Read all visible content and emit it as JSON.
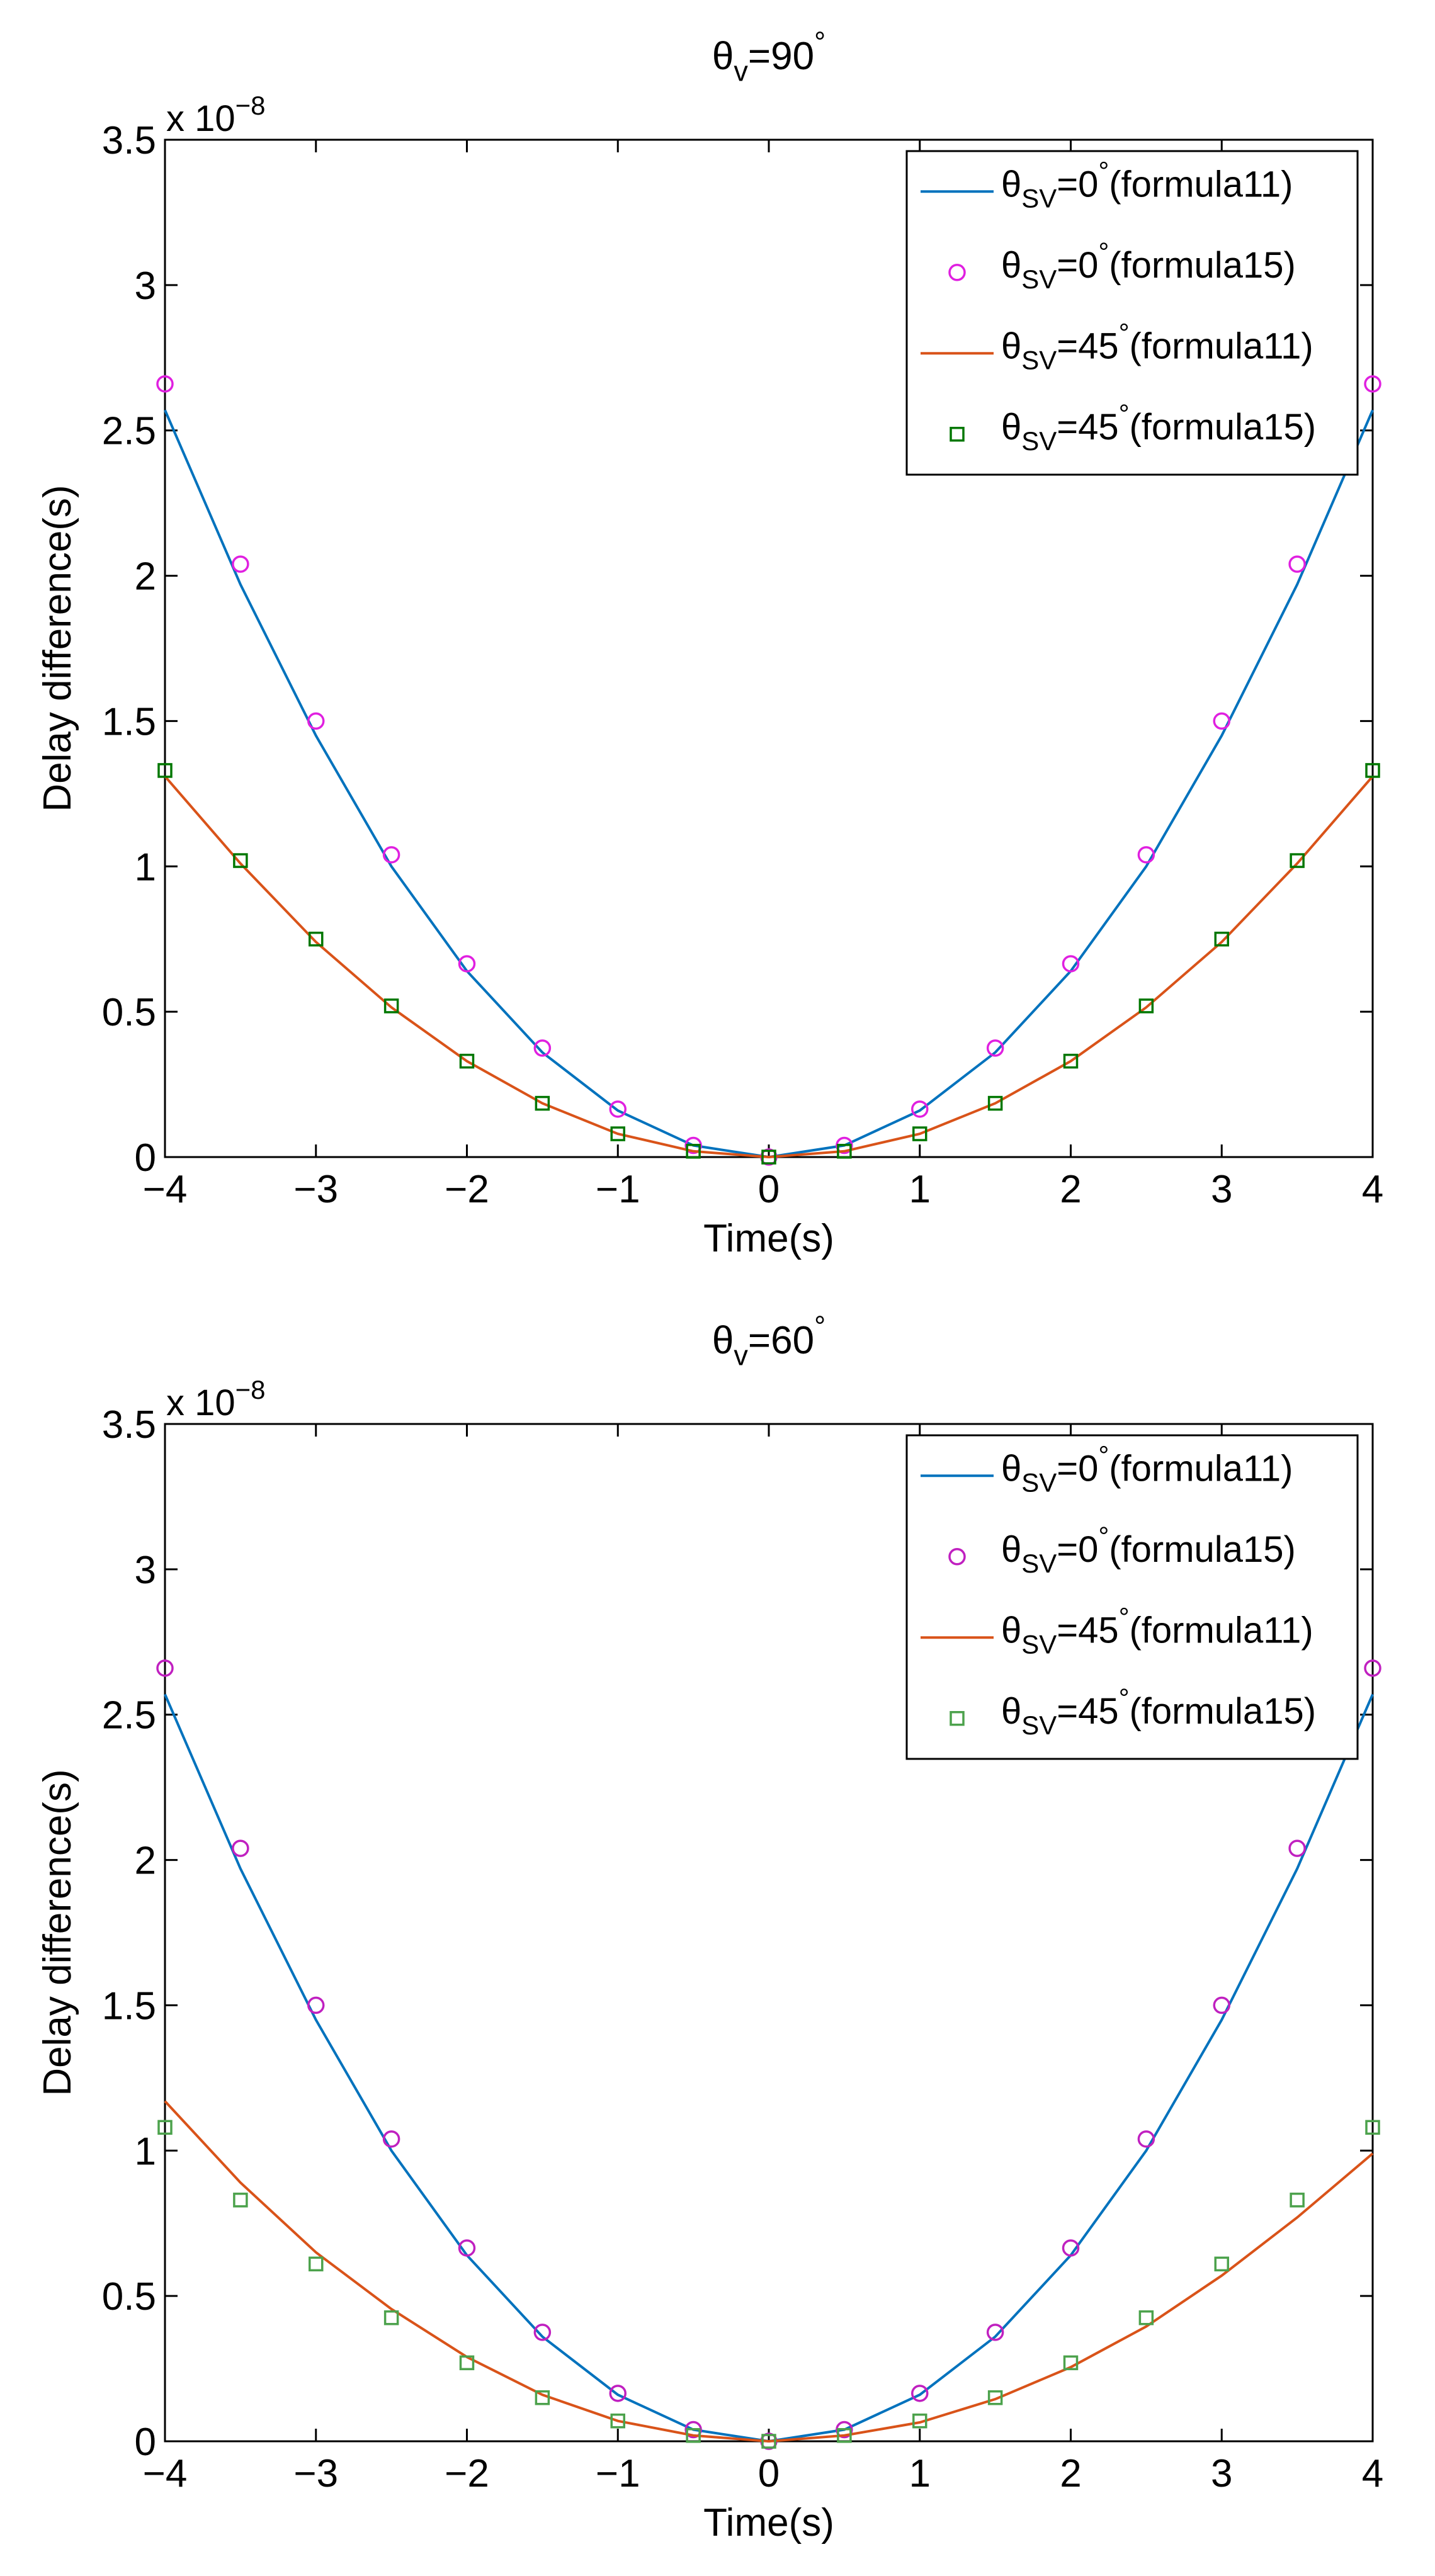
{
  "chart_data": [
    {
      "type": "line",
      "title": {
        "base": "θ",
        "sub": "v",
        "mid": "=90",
        "sup": "°"
      },
      "xlabel": "Time(s)",
      "ylabel": "Delay difference(s)",
      "xlim": [
        -4,
        4
      ],
      "ylim": [
        0,
        3.5e-08
      ],
      "exponent_label": {
        "prefix": "x 10",
        "power": "−8"
      },
      "xticks": [
        -4,
        -3,
        -2,
        -1,
        0,
        1,
        2,
        3,
        4
      ],
      "xtick_labels": [
        "−4",
        "−3",
        "−2",
        "−1",
        "0",
        "1",
        "2",
        "3",
        "4"
      ],
      "yticks": [
        0,
        0.5,
        1,
        1.5,
        2,
        2.5,
        3,
        3.5
      ],
      "ytick_labels": [
        "0",
        "0.5",
        "1",
        "1.5",
        "2",
        "2.5",
        "3",
        "3.5"
      ],
      "grid": false,
      "legend_position": "top-right",
      "series": [
        {
          "name": "θSV=0°(formula11)",
          "legend": {
            "base": "θ",
            "sub": "SV",
            "mid": "=0",
            "sup": "°",
            "tail": "(formula11)"
          },
          "style": "line",
          "color": "#0072BD",
          "x": [
            -4,
            -3.5,
            -3,
            -2.5,
            -2,
            -1.5,
            -1,
            -0.5,
            0,
            0.5,
            1,
            1.5,
            2,
            2.5,
            3,
            3.5,
            4
          ],
          "values": [
            2.57,
            1.97,
            1.45,
            1.0,
            0.64,
            0.36,
            0.16,
            0.04,
            0,
            0.04,
            0.16,
            0.36,
            0.64,
            1.0,
            1.45,
            1.97,
            2.57
          ]
        },
        {
          "name": "θSV=0°(formula15)",
          "legend": {
            "base": "θ",
            "sub": "SV",
            "mid": "=0",
            "sup": "°",
            "tail": "(formula15)"
          },
          "style": "circle",
          "color": "#E020E0",
          "x": [
            -4,
            -3.5,
            -3,
            -2.5,
            -2,
            -1.5,
            -1,
            -0.5,
            0,
            0.5,
            1,
            1.5,
            2,
            2.5,
            3,
            3.5,
            4
          ],
          "values": [
            2.66,
            2.04,
            1.5,
            1.04,
            0.665,
            0.375,
            0.165,
            0.04,
            0,
            0.04,
            0.165,
            0.375,
            0.665,
            1.04,
            1.5,
            2.04,
            2.66
          ]
        },
        {
          "name": "θSV=45°(formula11)",
          "legend": {
            "base": "θ",
            "sub": "SV",
            "mid": "=45",
            "sup": "°",
            "tail": "(formula11)"
          },
          "style": "line",
          "color": "#D95319",
          "x": [
            -4,
            -3.5,
            -3,
            -2.5,
            -2,
            -1.5,
            -1,
            -0.5,
            0,
            0.5,
            1,
            1.5,
            2,
            2.5,
            3,
            3.5,
            4
          ],
          "values": [
            1.31,
            1.01,
            0.74,
            0.515,
            0.33,
            0.185,
            0.08,
            0.02,
            0,
            0.02,
            0.08,
            0.185,
            0.33,
            0.515,
            0.74,
            1.01,
            1.31
          ]
        },
        {
          "name": "θSV=45°(formula15)",
          "legend": {
            "base": "θ",
            "sub": "SV",
            "mid": "=45",
            "sup": "°",
            "tail": "(formula15)"
          },
          "style": "square",
          "color": "#007700",
          "x": [
            -4,
            -3.5,
            -3,
            -2.5,
            -2,
            -1.5,
            -1,
            -0.5,
            0,
            0.5,
            1,
            1.5,
            2,
            2.5,
            3,
            3.5,
            4
          ],
          "values": [
            1.33,
            1.02,
            0.75,
            0.52,
            0.33,
            0.185,
            0.08,
            0.02,
            0,
            0.02,
            0.08,
            0.185,
            0.33,
            0.52,
            0.75,
            1.02,
            1.33
          ]
        }
      ]
    },
    {
      "type": "line",
      "title": {
        "base": "θ",
        "sub": "v",
        "mid": "=60",
        "sup": "°"
      },
      "xlabel": "Time(s)",
      "ylabel": "Delay difference(s)",
      "xlim": [
        -4,
        4
      ],
      "ylim": [
        0,
        3.5e-08
      ],
      "exponent_label": {
        "prefix": "x 10",
        "power": "−8"
      },
      "xticks": [
        -4,
        -3,
        -2,
        -1,
        0,
        1,
        2,
        3,
        4
      ],
      "xtick_labels": [
        "−4",
        "−3",
        "−2",
        "−1",
        "0",
        "1",
        "2",
        "3",
        "4"
      ],
      "yticks": [
        0,
        0.5,
        1,
        1.5,
        2,
        2.5,
        3,
        3.5
      ],
      "ytick_labels": [
        "0",
        "0.5",
        "1",
        "1.5",
        "2",
        "2.5",
        "3",
        "3.5"
      ],
      "grid": false,
      "legend_position": "top-right",
      "series": [
        {
          "name": "θSV=0°(formula11)",
          "legend": {
            "base": "θ",
            "sub": "SV",
            "mid": "=0",
            "sup": "°",
            "tail": "(formula11)"
          },
          "style": "line",
          "color": "#0072BD",
          "x": [
            -4,
            -3.5,
            -3,
            -2.5,
            -2,
            -1.5,
            -1,
            -0.5,
            0,
            0.5,
            1,
            1.5,
            2,
            2.5,
            3,
            3.5,
            4
          ],
          "values": [
            2.57,
            1.97,
            1.45,
            1.0,
            0.64,
            0.36,
            0.16,
            0.04,
            0,
            0.04,
            0.16,
            0.36,
            0.64,
            1.0,
            1.45,
            1.97,
            2.57
          ]
        },
        {
          "name": "θSV=0°(formula15)",
          "legend": {
            "base": "θ",
            "sub": "SV",
            "mid": "=0",
            "sup": "°",
            "tail": "(formula15)"
          },
          "style": "circle",
          "color": "#C020C0",
          "x": [
            -4,
            -3.5,
            -3,
            -2.5,
            -2,
            -1.5,
            -1,
            -0.5,
            0,
            0.5,
            1,
            1.5,
            2,
            2.5,
            3,
            3.5,
            4
          ],
          "values": [
            2.66,
            2.04,
            1.5,
            1.04,
            0.665,
            0.375,
            0.165,
            0.04,
            0,
            0.04,
            0.165,
            0.375,
            0.665,
            1.04,
            1.5,
            2.04,
            2.66
          ]
        },
        {
          "name": "θSV=45°(formula11)",
          "legend": {
            "base": "θ",
            "sub": "SV",
            "mid": "=45",
            "sup": "°",
            "tail": "(formula11)"
          },
          "style": "line",
          "color": "#D95319",
          "x": [
            -4,
            -3.5,
            -3,
            -2.5,
            -2,
            -1.5,
            -1,
            -0.5,
            0,
            0.5,
            1,
            1.5,
            2,
            2.5,
            3,
            3.5,
            4
          ],
          "values": [
            1.17,
            0.89,
            0.65,
            0.455,
            0.29,
            0.16,
            0.07,
            0.02,
            0,
            0.02,
            0.065,
            0.145,
            0.255,
            0.395,
            0.57,
            0.77,
            0.99
          ]
        },
        {
          "name": "θSV=45°(formula15)",
          "legend": {
            "base": "θ",
            "sub": "SV",
            "mid": "=45",
            "sup": "°",
            "tail": "(formula15)"
          },
          "style": "square",
          "color": "#4CA24C",
          "x": [
            -4,
            -3.5,
            -3,
            -2.5,
            -2,
            -1.5,
            -1,
            -0.5,
            0,
            0.5,
            1,
            1.5,
            2,
            2.5,
            3,
            3.5,
            4
          ],
          "values": [
            1.08,
            0.83,
            0.61,
            0.425,
            0.27,
            0.15,
            0.07,
            0.02,
            0,
            0.02,
            0.07,
            0.15,
            0.27,
            0.425,
            0.61,
            0.83,
            1.08
          ]
        }
      ]
    }
  ]
}
